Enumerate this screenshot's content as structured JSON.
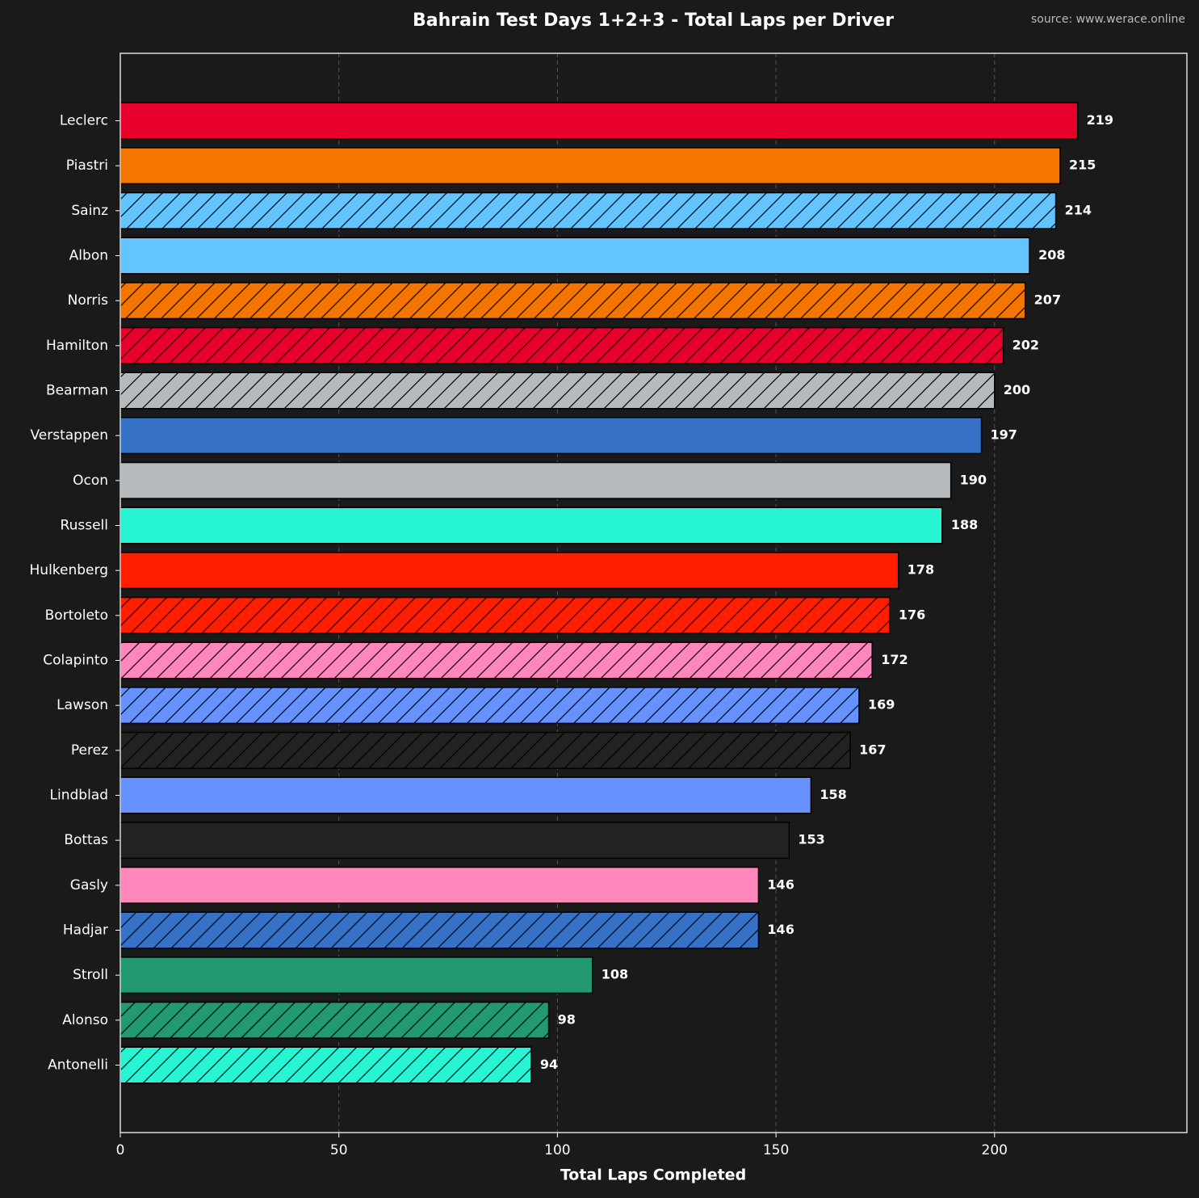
{
  "chart_data": {
    "type": "barh",
    "title": "Bahrain Test Days 1+2+3 - Total Laps per Driver",
    "source": "source: www.werace.online",
    "xlabel": "Total Laps Completed",
    "categories": [
      "Leclerc",
      "Piastri",
      "Sainz",
      "Albon",
      "Norris",
      "Hamilton",
      "Bearman",
      "Verstappen",
      "Ocon",
      "Russell",
      "Hulkenberg",
      "Bortoleto",
      "Colapinto",
      "Lawson",
      "Perez",
      "Lindblad",
      "Bottas",
      "Gasly",
      "Hadjar",
      "Stroll",
      "Alonso",
      "Antonelli"
    ],
    "values": [
      219,
      215,
      214,
      208,
      207,
      202,
      200,
      197,
      190,
      188,
      178,
      176,
      172,
      169,
      167,
      158,
      153,
      146,
      146,
      108,
      98,
      94
    ],
    "colors": [
      "#e8002d",
      "#f47600",
      "#64c4ff",
      "#64c4ff",
      "#f47600",
      "#e8002d",
      "#b6babd",
      "#3671c6",
      "#b6babd",
      "#27f4d2",
      "#ff1e00",
      "#ff1e00",
      "#ff87bc",
      "#6692ff",
      "#222222",
      "#6692ff",
      "#222222",
      "#ff87bc",
      "#3671c6",
      "#229971",
      "#229971",
      "#27f4d2"
    ],
    "hatched": [
      false,
      false,
      true,
      false,
      true,
      true,
      true,
      false,
      false,
      false,
      false,
      true,
      true,
      true,
      true,
      false,
      false,
      false,
      true,
      false,
      true,
      true
    ],
    "xlim": [
      0,
      244
    ],
    "xticks": [
      0,
      50,
      100,
      150,
      200
    ],
    "grid": true
  }
}
